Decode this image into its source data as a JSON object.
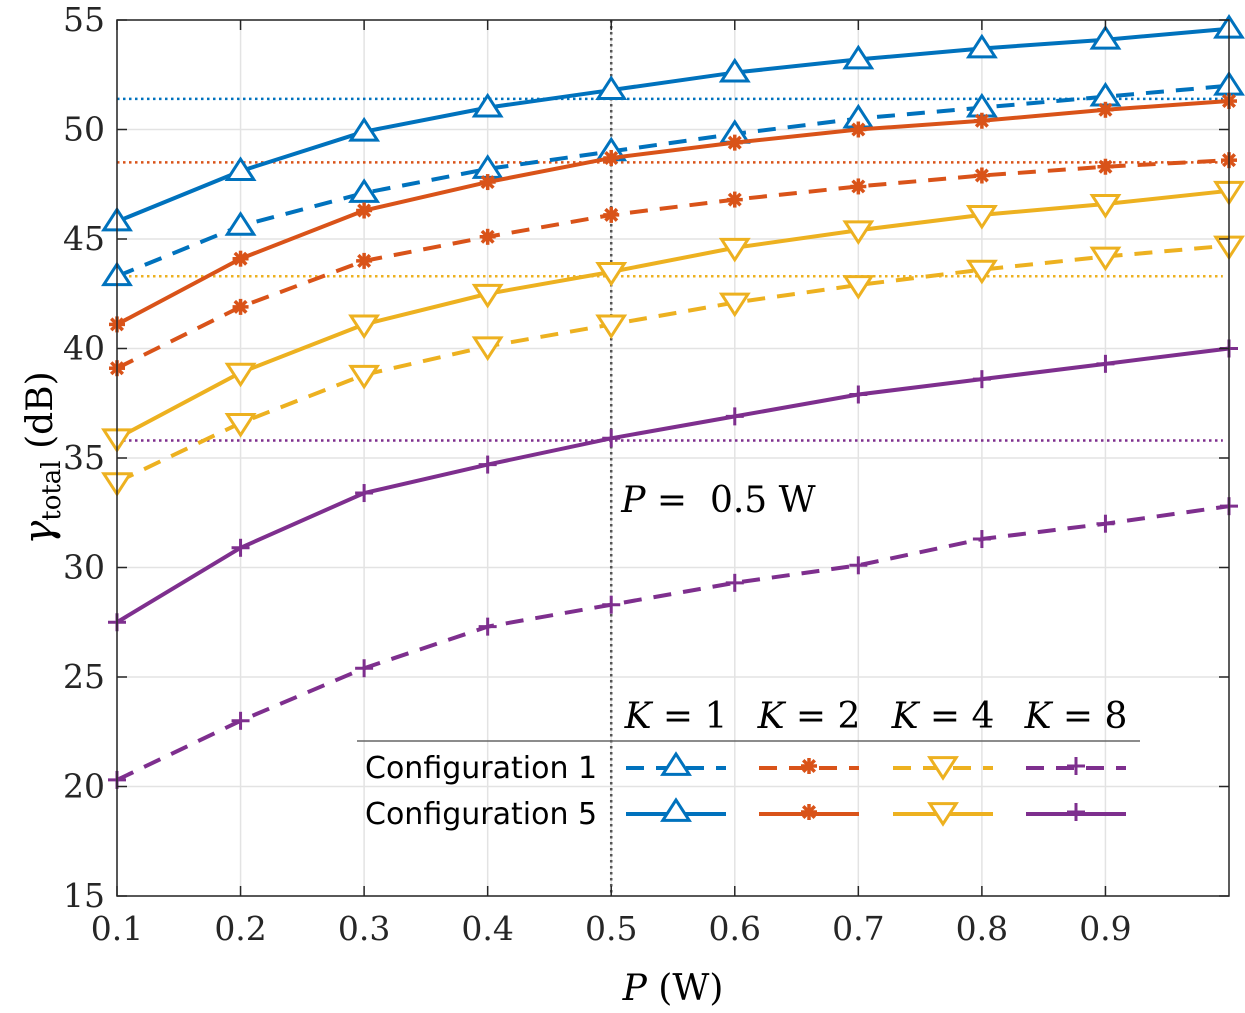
{
  "chart_data": {
    "type": "line",
    "xlabel": "P (W)",
    "ylabel": "γtotal (dB)",
    "xlim": [
      0.1,
      1.0
    ],
    "ylim": [
      15,
      55
    ],
    "x_ticks": [
      0.1,
      0.2,
      0.3,
      0.4,
      0.5,
      0.6,
      0.7,
      0.8,
      0.9
    ],
    "x_tick_labels": [
      "0.1",
      "0.2",
      "0.3",
      "0.4",
      "0.5",
      "0.6",
      "0.7",
      "0.8",
      "0.9"
    ],
    "y_ticks": [
      15,
      20,
      25,
      30,
      35,
      40,
      45,
      50,
      55
    ],
    "y_tick_labels": [
      "15",
      "20",
      "25",
      "30",
      "35",
      "40",
      "45",
      "50",
      "55"
    ],
    "grid": true,
    "x": [
      0.1,
      0.2,
      0.3,
      0.4,
      0.5,
      0.6,
      0.7,
      0.8,
      0.9,
      1.0
    ],
    "series": [
      {
        "name": "Configuration 1, K = 1",
        "config": 1,
        "k": "K = 1",
        "color": "#0072BD",
        "dash": true,
        "marker": "triangle-up",
        "values": [
          43.3,
          45.6,
          47.1,
          48.2,
          49.0,
          49.8,
          50.5,
          51.0,
          51.5,
          52.0
        ]
      },
      {
        "name": "Configuration 5, K = 1",
        "config": 5,
        "k": "K = 1",
        "color": "#0072BD",
        "dash": false,
        "marker": "triangle-up",
        "values": [
          45.8,
          48.1,
          49.9,
          51.0,
          51.8,
          52.6,
          53.2,
          53.7,
          54.1,
          54.6
        ]
      },
      {
        "name": "Configuration 1, K = 2",
        "config": 1,
        "k": "K = 2",
        "color": "#D95319",
        "dash": true,
        "marker": "asterisk",
        "values": [
          39.1,
          41.9,
          44.0,
          45.1,
          46.1,
          46.8,
          47.4,
          47.9,
          48.3,
          48.6
        ]
      },
      {
        "name": "Configuration 5, K = 2",
        "config": 5,
        "k": "K = 2",
        "color": "#D95319",
        "dash": false,
        "marker": "asterisk",
        "values": [
          41.1,
          44.1,
          46.3,
          47.6,
          48.7,
          49.4,
          50.0,
          50.4,
          50.9,
          51.3
        ]
      },
      {
        "name": "Configuration 1, K = 4",
        "config": 1,
        "k": "K = 4",
        "color": "#EDB120",
        "dash": true,
        "marker": "triangle-down",
        "values": [
          33.9,
          36.6,
          38.8,
          40.1,
          41.1,
          42.1,
          42.9,
          43.6,
          44.2,
          44.7
        ]
      },
      {
        "name": "Configuration 5, K = 4",
        "config": 5,
        "k": "K = 4",
        "color": "#EDB120",
        "dash": false,
        "marker": "triangle-down",
        "values": [
          35.9,
          38.9,
          41.1,
          42.5,
          43.5,
          44.6,
          45.4,
          46.1,
          46.6,
          47.2
        ]
      },
      {
        "name": "Configuration 1, K = 8",
        "config": 1,
        "k": "K = 8",
        "color": "#7E2F8E",
        "dash": true,
        "marker": "plus",
        "values": [
          20.3,
          23.0,
          25.4,
          27.3,
          28.3,
          29.3,
          30.1,
          31.3,
          32.0,
          32.8
        ]
      },
      {
        "name": "Configuration 5, K = 8",
        "config": 5,
        "k": "K = 8",
        "color": "#7E2F8E",
        "dash": false,
        "marker": "plus",
        "values": [
          27.5,
          30.9,
          33.4,
          34.7,
          35.9,
          36.9,
          37.9,
          38.6,
          39.3,
          40.0
        ]
      }
    ],
    "reference_lines": [
      {
        "y": 51.4,
        "color": "#0072BD"
      },
      {
        "y": 48.5,
        "color": "#D95319"
      },
      {
        "y": 43.3,
        "color": "#EDB120"
      },
      {
        "y": 35.8,
        "color": "#7E2F8E"
      }
    ],
    "vertical_line": {
      "x": 0.5,
      "color": "#555555"
    },
    "annotation": {
      "x": 0.5,
      "y": 33.0,
      "var": "P",
      "eq": " =  ",
      "value": "0.5 W"
    },
    "legend": {
      "placement": "bottom-right",
      "columns": [
        "K = 1",
        "K = 2",
        "K = 4",
        "K = 8"
      ],
      "rows": [
        "Configuration 1",
        "Configuration 5"
      ]
    }
  }
}
